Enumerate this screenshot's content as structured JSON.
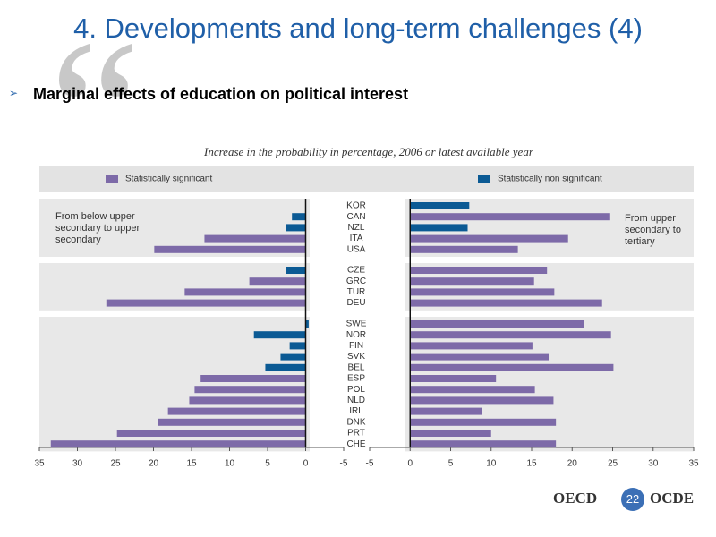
{
  "slide": {
    "title": "4. Developments and long-term challenges (4)",
    "bullet": "Marginal effects of education on political interest",
    "footer": {
      "left": "OECD",
      "page": 22,
      "right": "OCDE"
    }
  },
  "chart_data": {
    "type": "butterfly",
    "subtitle": "Increase in the probability in percentage, 2006 or latest available year",
    "legend": [
      {
        "name": "Statistically significant",
        "color": "#7d6aa8"
      },
      {
        "name": "Statistically non significant",
        "color": "#0b5a94"
      }
    ],
    "category_groups": [
      [
        "KOR",
        "CAN",
        "NZL",
        "ITA",
        "USA"
      ],
      [
        "CZE",
        "GRC",
        "TUR",
        "DEU"
      ],
      [
        "SWE",
        "NOR",
        "FIN",
        "SVK",
        "BEL",
        "ESP",
        "POL",
        "NLD",
        "IRL",
        "DNK",
        "PRT",
        "CHE"
      ]
    ],
    "panels": [
      {
        "label": "From below upper secondary to upper secondary",
        "xlim": [
          35,
          -5
        ],
        "xticks": [
          35,
          30,
          25,
          20,
          15,
          10,
          5,
          0,
          -5
        ],
        "values": [
          [
            null,
            1.8,
            2.6,
            13.3,
            19.9
          ],
          [
            2.6,
            7.4,
            15.9,
            26.2
          ],
          [
            -0.4,
            6.8,
            2.1,
            3.3,
            5.3,
            13.8,
            14.6,
            15.3,
            18.1,
            19.4,
            24.8,
            33.5
          ]
        ],
        "legend_index": [
          [
            null,
            1,
            1,
            0,
            0
          ],
          [
            1,
            0,
            0,
            0
          ],
          [
            1,
            1,
            1,
            1,
            1,
            0,
            0,
            0,
            0,
            0,
            0,
            0
          ]
        ]
      },
      {
        "label": "From upper secondary to tertiary",
        "xlim": [
          -5,
          35
        ],
        "xticks": [
          -5,
          0,
          5,
          10,
          15,
          20,
          25,
          30,
          35
        ],
        "values": [
          [
            7.3,
            24.7,
            7.1,
            19.5,
            13.3
          ],
          [
            16.9,
            15.3,
            17.8,
            23.7
          ],
          [
            21.5,
            24.8,
            15.1,
            17.1,
            25.1,
            10.6,
            15.4,
            17.7,
            8.9,
            18.0,
            10.0,
            18.0
          ]
        ],
        "legend_index": [
          [
            1,
            0,
            1,
            0,
            0
          ],
          [
            0,
            0,
            0,
            0
          ],
          [
            0,
            0,
            0,
            0,
            0,
            0,
            0,
            0,
            0,
            0,
            0,
            0
          ]
        ]
      }
    ]
  }
}
